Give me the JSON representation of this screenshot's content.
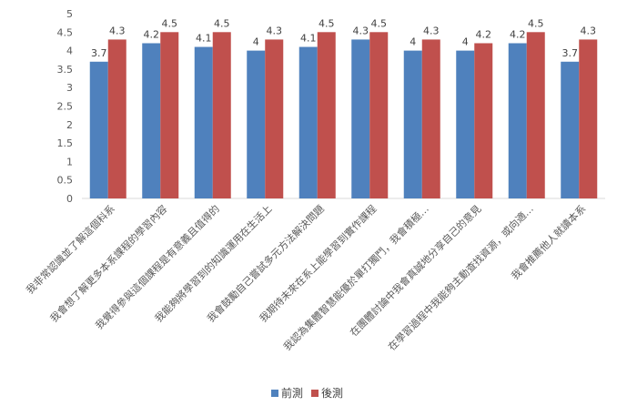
{
  "chart_data": {
    "type": "bar",
    "title": "",
    "xlabel": "",
    "ylabel": "",
    "ylim": [
      0,
      5
    ],
    "yticks": [
      "0",
      "0.5",
      "1",
      "1.5",
      "2",
      "2.5",
      "3",
      "3.5",
      "4",
      "4.5",
      "5"
    ],
    "grid": false,
    "legend_position": "bottom",
    "categories": [
      "我非常認識並了解這個科系",
      "我會想了解更多本系課程的學習內容",
      "我覺得參與這個課程是有意義且值得的",
      "我能夠將學習到的知識運用在生活上",
      "我會鼓勵自己嘗試多元方法解決問題",
      "我期待未來在系上能學習到實作課程",
      "我認為集體智慧能優於單打獨鬥，我會積極…",
      "在團體討論中我會真誠地分享自己的意見",
      "在學習過程中我能夠主動查找資源，或向適…",
      "我會推薦他人就讀本系"
    ],
    "series": [
      {
        "name": "前測",
        "color": "#4f81bd",
        "values": [
          3.7,
          4.2,
          4.1,
          4,
          4.1,
          4.3,
          4,
          4,
          4.2,
          3.7
        ],
        "labels": [
          "3.7",
          "4.2",
          "4.1",
          "4",
          "4.1",
          "4.3",
          "4",
          "4",
          "4.2",
          "3.7"
        ]
      },
      {
        "name": "後測",
        "color": "#c0504d",
        "values": [
          4.3,
          4.5,
          4.5,
          4.3,
          4.5,
          4.5,
          4.3,
          4.2,
          4.5,
          4.3
        ],
        "labels": [
          "4.3",
          "4.5",
          "4.5",
          "4.3",
          "4.5",
          "4.5",
          "4.3",
          "4.2",
          "4.5",
          "4.3"
        ]
      }
    ]
  }
}
